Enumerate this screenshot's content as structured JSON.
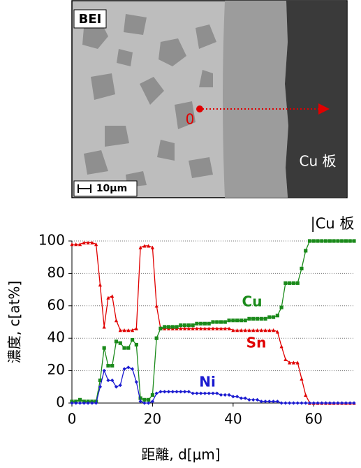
{
  "image": {
    "label": "BEI",
    "scale": "10μm",
    "origin": "0",
    "region": "Cu 板"
  },
  "chart_data": {
    "type": "line",
    "annotation": "|Cu 板",
    "xlabel": "距離, d[μm]",
    "ylabel": "濃度, c[at%]",
    "x": [
      0,
      1,
      2,
      3,
      4,
      5,
      6,
      7,
      8,
      9,
      10,
      11,
      12,
      13,
      14,
      15,
      16,
      17,
      18,
      19,
      20,
      21,
      22,
      23,
      24,
      25,
      26,
      27,
      28,
      29,
      30,
      31,
      32,
      33,
      34,
      35,
      36,
      37,
      38,
      39,
      40,
      41,
      42,
      43,
      44,
      45,
      46,
      47,
      48,
      49,
      50,
      51,
      52,
      53,
      54,
      55,
      56,
      57,
      58,
      59,
      60,
      61,
      62,
      63,
      64,
      65,
      66,
      67,
      68,
      69,
      70
    ],
    "xlim": [
      0,
      70
    ],
    "xticks": [
      0,
      20,
      40,
      60
    ],
    "ylim": [
      0,
      100
    ],
    "yticks": [
      0,
      20,
      40,
      60,
      80,
      100
    ],
    "grid": true,
    "series": [
      {
        "name": "Sn",
        "color": "#e00000",
        "marker": "triangle",
        "values": [
          98,
          98,
          98,
          99,
          99,
          99,
          98,
          73,
          47,
          65,
          66,
          51,
          45,
          45,
          45,
          45,
          46,
          96,
          97,
          97,
          96,
          60,
          46,
          46,
          46,
          46,
          46,
          46,
          46,
          46,
          46,
          46,
          46,
          46,
          46,
          46,
          46,
          46,
          46,
          46,
          45,
          45,
          45,
          45,
          45,
          45,
          45,
          45,
          45,
          45,
          45,
          44,
          35,
          27,
          25,
          25,
          25,
          15,
          5,
          0,
          0,
          0,
          0,
          0,
          0,
          0,
          0,
          0,
          0,
          0,
          0
        ]
      },
      {
        "name": "Cu",
        "color": "#1a8a1a",
        "marker": "square",
        "values": [
          1,
          1,
          2,
          1,
          1,
          1,
          1,
          14,
          34,
          23,
          23,
          38,
          37,
          34,
          34,
          39,
          36,
          3,
          2,
          2,
          5,
          40,
          46,
          47,
          47,
          47,
          47,
          48,
          48,
          48,
          48,
          49,
          49,
          49,
          49,
          50,
          50,
          50,
          50,
          51,
          51,
          51,
          51,
          51,
          52,
          52,
          52,
          52,
          52,
          53,
          53,
          54,
          59,
          74,
          74,
          74,
          74,
          83,
          94,
          100,
          100,
          100,
          100,
          100,
          100,
          100,
          100,
          100,
          100,
          100,
          100
        ]
      },
      {
        "name": "Ni",
        "color": "#1a1ad0",
        "marker": "diamond",
        "values": [
          0,
          0,
          0,
          0,
          0,
          0,
          0,
          10,
          20,
          14,
          14,
          10,
          11,
          21,
          22,
          21,
          13,
          1,
          0,
          0,
          1,
          6,
          7,
          7,
          7,
          7,
          7,
          7,
          7,
          7,
          6,
          6,
          6,
          6,
          6,
          6,
          6,
          5,
          5,
          5,
          4,
          4,
          3,
          3,
          2,
          2,
          2,
          1,
          1,
          1,
          1,
          1,
          0,
          0,
          0,
          0,
          0,
          0,
          0,
          0,
          0,
          0,
          0,
          0,
          0,
          0,
          0,
          0,
          0,
          0,
          0
        ]
      }
    ]
  }
}
